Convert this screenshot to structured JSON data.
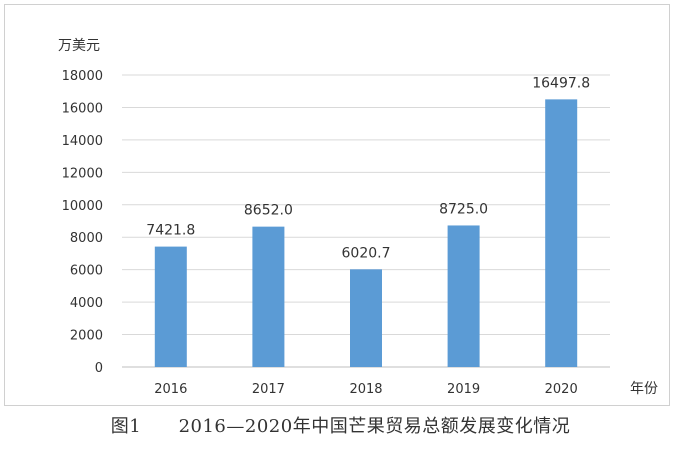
{
  "chart_data": {
    "type": "bar",
    "categories": [
      "2016",
      "2017",
      "2018",
      "2019",
      "2020"
    ],
    "values": [
      7421.8,
      8652.0,
      6020.7,
      8725.0,
      16497.8
    ],
    "value_labels": [
      "7421.8",
      "8652.0",
      "6020.7",
      "8725.0",
      "16497.8"
    ],
    "ylabel": "万美元",
    "xlabel": "年份",
    "ylim": [
      0,
      18000
    ],
    "yticks": [
      "0",
      "2000",
      "4000",
      "6000",
      "8000",
      "10000",
      "12000",
      "14000",
      "16000",
      "18000"
    ],
    "grid": true,
    "bar_color": "#5b9bd5"
  },
  "caption": {
    "figure_no": "图1",
    "text": "2016—2020年中国芒果贸易总额发展变化情况"
  }
}
